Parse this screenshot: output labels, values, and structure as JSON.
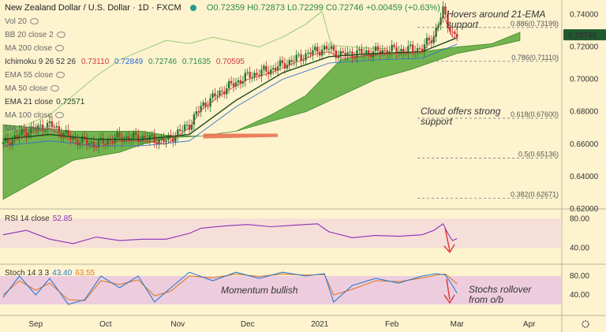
{
  "header": {
    "symbol": "New Zealand Dollar / U.S. Dollar · 1D · FXCM",
    "ohlc": "O0.72359 H0.72873 L0.72299 C0.72746 +0.00459 (+0.63%)"
  },
  "legends": {
    "vol": "Vol 20",
    "bb": "BB 20 close 2",
    "ma200": "MA 200 close",
    "ichimoku_label": "Ichimoku 9 26 52 26",
    "ichimoku_values": [
      "0.73110",
      "0.72849",
      "0.72746",
      "0.71635",
      "0.70595"
    ],
    "ichimoku_colors": [
      "#d23a3a",
      "#2a6ad0",
      "#2a8a4a",
      "#2a8a4a",
      "#d23a3a"
    ],
    "ema55": "EMA 55 close",
    "ma50": "MA 50 close",
    "ema21": "EMA 21 close",
    "ema21_value": "0.72571",
    "ma100": "MA 100 close",
    "ma5": "MA 5 close",
    "rsi_label": "RSI 14 close",
    "rsi_value": "52.85",
    "stoch_label": "Stoch 14 3 3",
    "stoch_k": "43.40",
    "stoch_d": "63.55"
  },
  "annotations": {
    "ema": [
      "Hovers around 21-EMA",
      "support"
    ],
    "cloud": [
      "Cloud offers strong",
      "support"
    ],
    "momentum": "Momentum bullish",
    "stochs": [
      "Stochs rollover",
      "from o/b"
    ]
  },
  "colors": {
    "candle_up": "#1f7a2e",
    "candle_down": "#c8312b",
    "cloud": "#5aa83a",
    "rsi": "#8a2fb8",
    "stoch_k": "#2a7ad0",
    "stoch_d": "#e07a2a",
    "ema21": "#1f4a1f",
    "lagging": "#9acb74",
    "price_badge": "#1f5a2e"
  },
  "chart_data": {
    "type": "candlestick",
    "price_axis": {
      "ticks": [
        "0.74000",
        "0.72000",
        "0.70000",
        "0.68000",
        "0.66000",
        "0.64000",
        "0.62000"
      ],
      "range": [
        0.621,
        0.7465
      ]
    },
    "last_price": "0.72746",
    "x_axis": {
      "labels": [
        "Sep",
        "Oct",
        "Nov",
        "Dec",
        "2021",
        "Feb",
        "Mar",
        "Apr"
      ],
      "days": [
        14,
        44,
        75,
        105,
        136,
        167,
        195,
        226
      ]
    },
    "fib_levels": [
      {
        "label": "0.886(0.73199)",
        "value": 0.73199
      },
      {
        "label": "0.786(0.71110)",
        "value": 0.7111
      },
      {
        "label": "0.618(0.67600)",
        "value": 0.676
      },
      {
        "label": "0.5(0.65136)",
        "value": 0.65136
      },
      {
        "label": "0.382(0.62671)",
        "value": 0.62671
      }
    ],
    "price_path": [
      [
        0,
        0.66
      ],
      [
        10,
        0.668
      ],
      [
        20,
        0.672
      ],
      [
        30,
        0.663
      ],
      [
        40,
        0.66
      ],
      [
        50,
        0.664
      ],
      [
        60,
        0.664
      ],
      [
        70,
        0.662
      ],
      [
        80,
        0.672
      ],
      [
        85,
        0.683
      ],
      [
        95,
        0.694
      ],
      [
        105,
        0.702
      ],
      [
        115,
        0.706
      ],
      [
        125,
        0.712
      ],
      [
        135,
        0.718
      ],
      [
        140,
        0.719
      ],
      [
        145,
        0.715
      ],
      [
        150,
        0.716
      ],
      [
        160,
        0.717
      ],
      [
        165,
        0.718
      ],
      [
        172,
        0.718
      ],
      [
        180,
        0.719
      ],
      [
        185,
        0.727
      ],
      [
        189,
        0.742
      ],
      [
        191,
        0.735
      ],
      [
        193,
        0.728
      ],
      [
        195,
        0.727
      ]
    ],
    "ema21_path": [
      [
        0,
        0.663
      ],
      [
        20,
        0.666
      ],
      [
        40,
        0.663
      ],
      [
        60,
        0.663
      ],
      [
        80,
        0.666
      ],
      [
        100,
        0.687
      ],
      [
        120,
        0.704
      ],
      [
        140,
        0.714
      ],
      [
        160,
        0.716
      ],
      [
        180,
        0.717
      ],
      [
        195,
        0.7257
      ]
    ],
    "cloud_upper": [
      [
        0,
        0.672
      ],
      [
        30,
        0.668
      ],
      [
        60,
        0.668
      ],
      [
        72,
        0.665
      ],
      [
        85,
        0.665
      ],
      [
        100,
        0.668
      ],
      [
        115,
        0.678
      ],
      [
        130,
        0.69
      ],
      [
        145,
        0.712
      ],
      [
        160,
        0.716
      ],
      [
        175,
        0.716
      ],
      [
        195,
        0.72
      ],
      [
        210,
        0.722
      ],
      [
        222,
        0.729
      ]
    ],
    "cloud_lower": [
      [
        0,
        0.626
      ],
      [
        15,
        0.638
      ],
      [
        30,
        0.65
      ],
      [
        50,
        0.655
      ],
      [
        60,
        0.66
      ],
      [
        72,
        0.664
      ],
      [
        85,
        0.665
      ],
      [
        100,
        0.668
      ],
      [
        115,
        0.674
      ],
      [
        130,
        0.68
      ],
      [
        145,
        0.69
      ],
      [
        160,
        0.7
      ],
      [
        175,
        0.706
      ],
      [
        195,
        0.716
      ],
      [
        210,
        0.72
      ],
      [
        222,
        0.724
      ]
    ],
    "lagging_path": [
      [
        0,
        0.666
      ],
      [
        10,
        0.672
      ],
      [
        20,
        0.678
      ],
      [
        30,
        0.69
      ],
      [
        40,
        0.702
      ],
      [
        50,
        0.712
      ],
      [
        60,
        0.718
      ],
      [
        70,
        0.724
      ],
      [
        80,
        0.722
      ],
      [
        90,
        0.726
      ],
      [
        100,
        0.723
      ],
      [
        110,
        0.72
      ],
      [
        120,
        0.726
      ],
      [
        130,
        0.734
      ],
      [
        137,
        0.742
      ],
      [
        141,
        0.721
      ],
      [
        150,
        0.72
      ],
      [
        160,
        0.719
      ],
      [
        165,
        0.719
      ]
    ],
    "rsi": {
      "ticks": [
        "80.00",
        "40.00"
      ],
      "range": [
        20,
        90
      ],
      "values": [
        [
          0,
          58
        ],
        [
          10,
          64
        ],
        [
          20,
          52
        ],
        [
          30,
          46
        ],
        [
          40,
          55
        ],
        [
          50,
          50
        ],
        [
          60,
          52
        ],
        [
          70,
          52
        ],
        [
          80,
          60
        ],
        [
          85,
          67
        ],
        [
          95,
          70
        ],
        [
          105,
          72
        ],
        [
          115,
          69
        ],
        [
          125,
          71
        ],
        [
          135,
          73
        ],
        [
          140,
          62
        ],
        [
          150,
          54
        ],
        [
          160,
          57
        ],
        [
          170,
          56
        ],
        [
          180,
          58
        ],
        [
          185,
          64
        ],
        [
          189,
          73
        ],
        [
          191,
          60
        ],
        [
          193,
          50
        ],
        [
          195,
          52.85
        ]
      ]
    },
    "stoch": {
      "ticks": [
        "80.00",
        "40.00"
      ],
      "range": [
        0,
        100
      ],
      "k": [
        [
          0,
          35
        ],
        [
          7,
          80
        ],
        [
          14,
          40
        ],
        [
          20,
          75
        ],
        [
          28,
          20
        ],
        [
          35,
          30
        ],
        [
          42,
          80
        ],
        [
          50,
          55
        ],
        [
          58,
          80
        ],
        [
          65,
          25
        ],
        [
          72,
          55
        ],
        [
          80,
          88
        ],
        [
          90,
          70
        ],
        [
          100,
          88
        ],
        [
          110,
          75
        ],
        [
          120,
          88
        ],
        [
          130,
          80
        ],
        [
          138,
          85
        ],
        [
          142,
          25
        ],
        [
          150,
          60
        ],
        [
          160,
          75
        ],
        [
          170,
          65
        ],
        [
          180,
          80
        ],
        [
          186,
          85
        ],
        [
          190,
          82
        ],
        [
          193,
          60
        ],
        [
          195,
          43.4
        ]
      ],
      "d": [
        [
          0,
          40
        ],
        [
          7,
          70
        ],
        [
          14,
          50
        ],
        [
          20,
          65
        ],
        [
          28,
          30
        ],
        [
          35,
          28
        ],
        [
          42,
          70
        ],
        [
          50,
          62
        ],
        [
          58,
          72
        ],
        [
          65,
          38
        ],
        [
          72,
          48
        ],
        [
          80,
          80
        ],
        [
          90,
          76
        ],
        [
          100,
          84
        ],
        [
          110,
          79
        ],
        [
          120,
          84
        ],
        [
          130,
          82
        ],
        [
          138,
          83
        ],
        [
          142,
          40
        ],
        [
          150,
          52
        ],
        [
          160,
          70
        ],
        [
          170,
          68
        ],
        [
          180,
          76
        ],
        [
          186,
          82
        ],
        [
          190,
          84
        ],
        [
          193,
          72
        ],
        [
          195,
          63.55
        ]
      ]
    }
  }
}
